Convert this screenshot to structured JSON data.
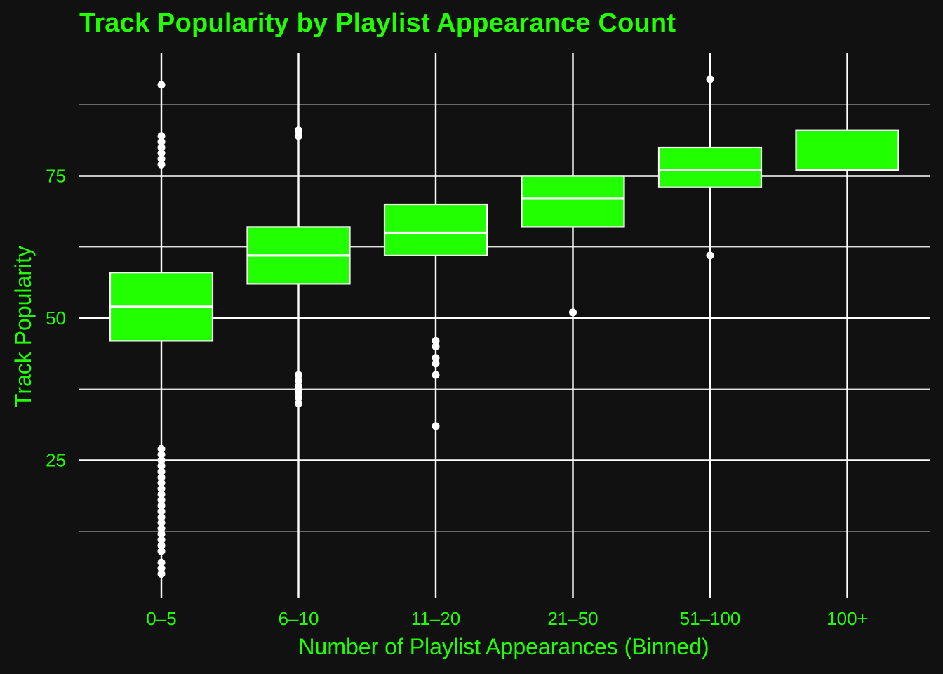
{
  "chart_data": {
    "type": "box",
    "title": "Track Popularity by Playlist Appearance Count",
    "xlabel": "Number of Playlist Appearances (Binned)",
    "ylabel": "Track Popularity",
    "ylim": [
      2,
      93
    ],
    "yticks": [
      25,
      50,
      75
    ],
    "ygrid_minor": [
      12.5,
      37.5,
      62.5,
      87.5
    ],
    "grid": true,
    "categories": [
      "0–5",
      "6–10",
      "11–20",
      "21–50",
      "51–100",
      "100+"
    ],
    "boxes": [
      {
        "category": "0–5",
        "q1": 46,
        "median": 52,
        "q3": 58,
        "whisker_low": 28,
        "whisker_high": 76,
        "outliers": [
          91,
          82,
          81,
          80,
          79,
          78,
          77,
          27,
          26,
          25,
          24,
          23,
          22,
          21,
          20,
          19,
          18,
          17,
          16,
          15,
          14,
          13,
          12,
          11,
          10,
          9,
          7,
          6,
          5
        ]
      },
      {
        "category": "6–10",
        "q1": 56,
        "median": 61,
        "q3": 66,
        "whisker_low": 41,
        "whisker_high": 81,
        "outliers": [
          83,
          82,
          40,
          39,
          38,
          37,
          36,
          35
        ]
      },
      {
        "category": "11–20",
        "q1": 61,
        "median": 65,
        "q3": 70,
        "whisker_low": 47,
        "whisker_high": 83,
        "outliers": [
          46,
          45,
          43,
          42,
          40,
          31
        ]
      },
      {
        "category": "21–50",
        "q1": 66,
        "median": 71,
        "q3": 75,
        "whisker_low": 53,
        "whisker_high": 88,
        "outliers": [
          51
        ]
      },
      {
        "category": "51–100",
        "q1": 73,
        "median": 76,
        "q3": 80,
        "whisker_low": 63,
        "whisker_high": 90,
        "outliers": [
          92,
          61
        ]
      },
      {
        "category": "100+",
        "q1": 76,
        "median": 76,
        "q3": 83,
        "whisker_low": 76,
        "whisker_high": 83,
        "outliers": []
      }
    ],
    "colors": {
      "background": "#111111",
      "box_fill": "#22ff00",
      "line": "#ffffff",
      "text": "#22ff00"
    }
  }
}
